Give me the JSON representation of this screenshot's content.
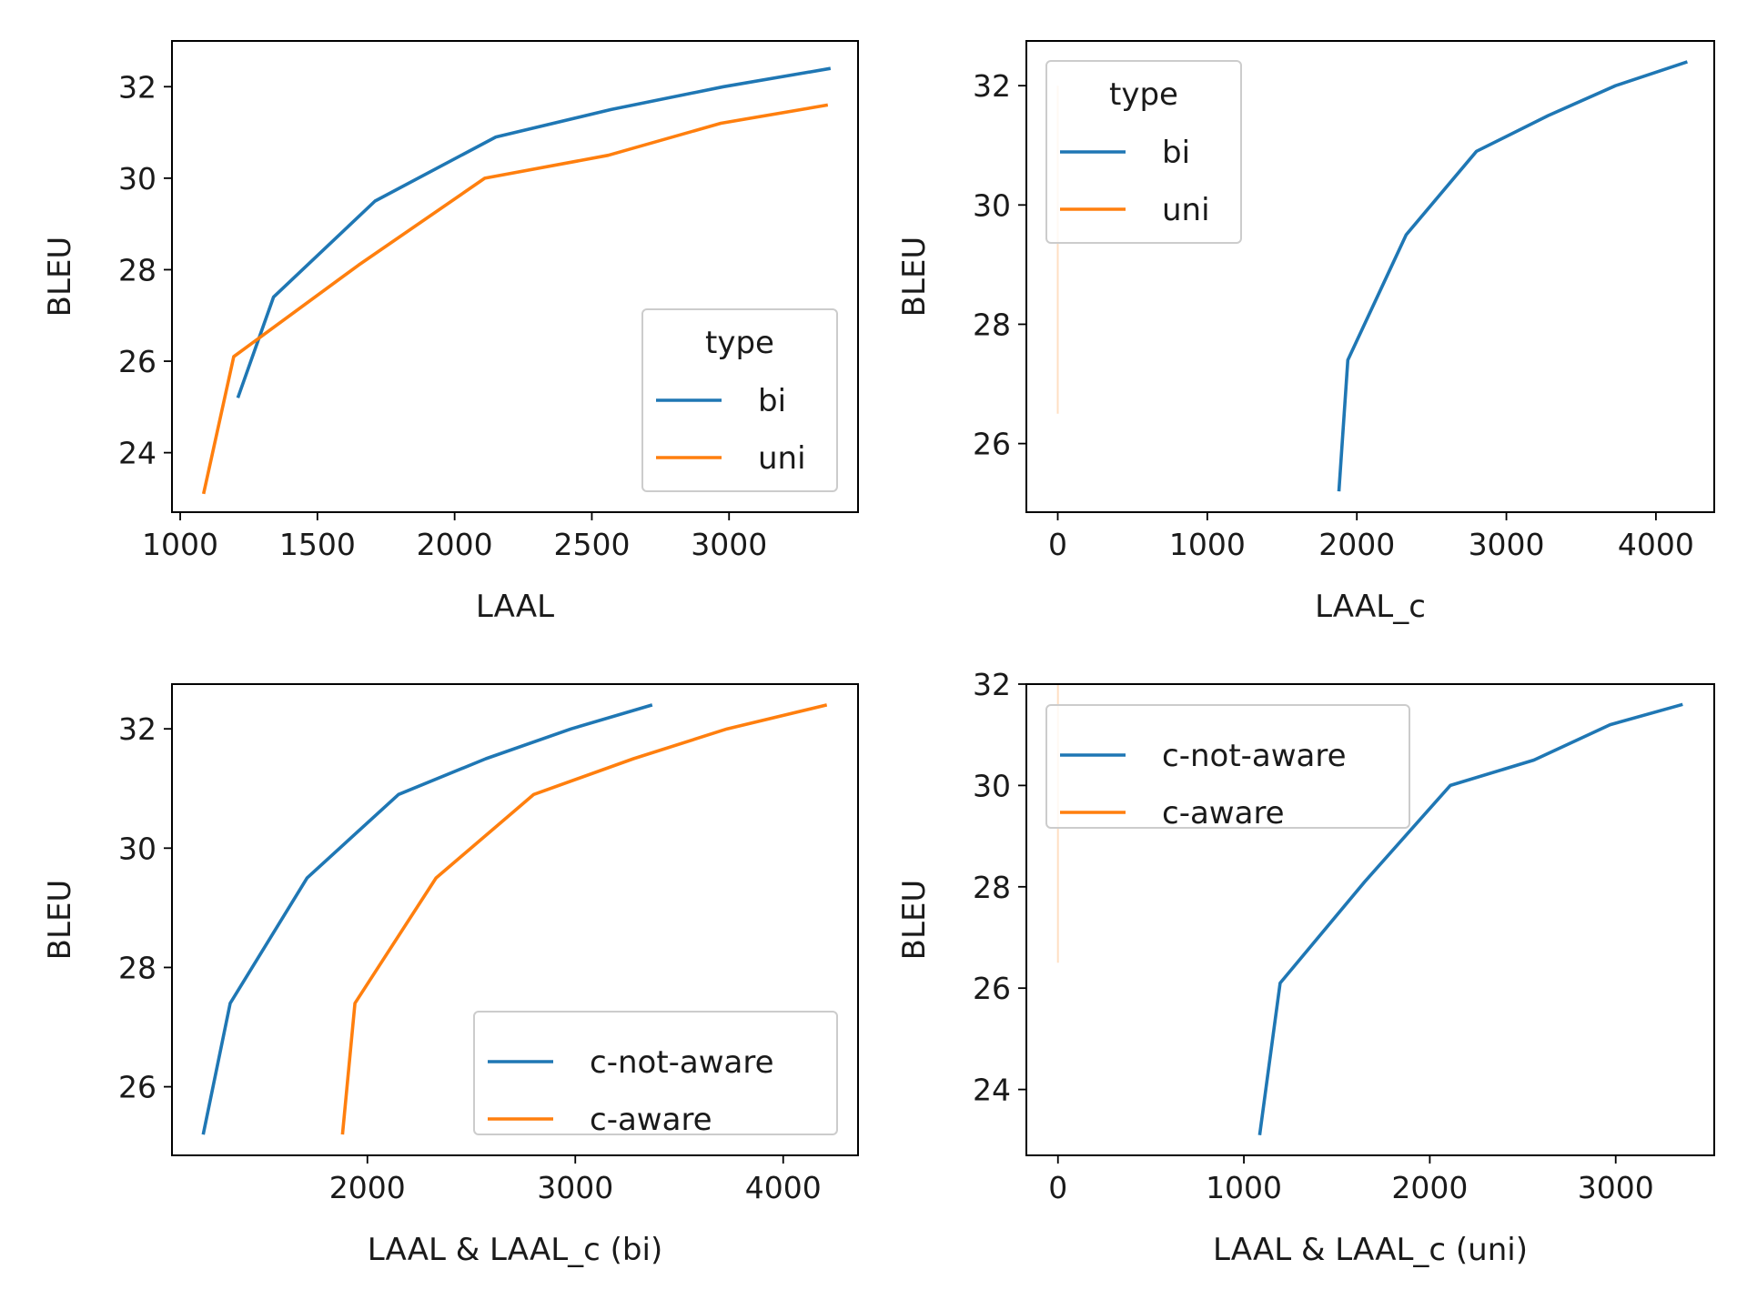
{
  "chart_data": [
    {
      "type": "line",
      "xlabel": "LAAL",
      "ylabel": "BLEU",
      "xlim": [
        970,
        3470
      ],
      "ylim": [
        22.7,
        33.0
      ],
      "xticks": [
        1000,
        1500,
        2000,
        2500,
        3000
      ],
      "yticks": [
        24,
        26,
        28,
        30,
        32
      ],
      "legend": {
        "title": "type",
        "position": "lower-right"
      },
      "series": [
        {
          "name": "bi",
          "color": "#1f77b4",
          "x": [
            1210,
            1340,
            1710,
            2150,
            2570,
            2980,
            3370
          ],
          "y": [
            25.2,
            27.4,
            29.5,
            30.9,
            31.5,
            32.0,
            32.4
          ]
        },
        {
          "name": "uni",
          "color": "#ff7f0e",
          "x": [
            1085,
            1195,
            1650,
            2110,
            2560,
            2970,
            3360
          ],
          "y": [
            23.1,
            26.1,
            28.1,
            30.0,
            30.5,
            31.2,
            31.6
          ]
        }
      ]
    },
    {
      "type": "line",
      "xlabel": "LAAL_c",
      "ylabel": "BLEU",
      "xlim": [
        -210,
        4390
      ],
      "ylim": [
        24.85,
        32.75
      ],
      "xticks": [
        0,
        1000,
        2000,
        3000,
        4000
      ],
      "yticks": [
        26,
        28,
        30,
        32
      ],
      "legend": {
        "title": "type",
        "position": "upper-left"
      },
      "series": [
        {
          "name": "bi",
          "color": "#1f77b4",
          "x": [
            1880,
            1940,
            2330,
            2800,
            3280,
            3730,
            4210
          ],
          "y": [
            25.2,
            27.4,
            29.5,
            30.9,
            31.5,
            32.0,
            32.4
          ]
        },
        {
          "name": "uni",
          "color": "#ff7f0e",
          "x": [
            0,
            0,
            0,
            0,
            0
          ],
          "y": [
            26.5,
            28.0,
            30.0,
            31.0,
            32.0
          ]
        }
      ]
    },
    {
      "type": "line",
      "xlabel": "LAAL & LAAL_c (bi)",
      "ylabel": "BLEU",
      "xlim": [
        1060,
        4360
      ],
      "ylim": [
        24.85,
        32.75
      ],
      "xticks": [
        2000,
        3000,
        4000
      ],
      "yticks": [
        26,
        28,
        30,
        32
      ],
      "legend": {
        "title": "",
        "position": "lower-right"
      },
      "series": [
        {
          "name": "c-not-aware",
          "color": "#1f77b4",
          "x": [
            1210,
            1340,
            1710,
            2150,
            2570,
            2980,
            3370
          ],
          "y": [
            25.2,
            27.4,
            29.5,
            30.9,
            31.5,
            32.0,
            32.4
          ]
        },
        {
          "name": "c-aware",
          "color": "#ff7f0e",
          "x": [
            1880,
            1940,
            2330,
            2800,
            3280,
            3730,
            4210
          ],
          "y": [
            25.2,
            27.4,
            29.5,
            30.9,
            31.5,
            32.0,
            32.4
          ]
        }
      ]
    },
    {
      "type": "line",
      "xlabel": "LAAL & LAAL_c (uni)",
      "ylabel": "BLEU",
      "xlim": [
        -170,
        3530
      ],
      "ylim": [
        22.7,
        32.0
      ],
      "xticks": [
        0,
        1000,
        2000,
        3000
      ],
      "yticks": [
        24,
        26,
        28,
        30,
        32
      ],
      "legend": {
        "title": "",
        "position": "upper-left"
      },
      "series": [
        {
          "name": "c-not-aware",
          "color": "#1f77b4",
          "x": [
            1085,
            1195,
            1650,
            2110,
            2560,
            2970,
            3360
          ],
          "y": [
            23.1,
            26.1,
            28.1,
            30.0,
            30.5,
            31.2,
            31.6
          ]
        },
        {
          "name": "c-aware",
          "color": "#ff7f0e",
          "x": [
            0,
            0,
            0,
            0,
            0
          ],
          "y": [
            26.5,
            28.0,
            30.0,
            31.0,
            32.0
          ]
        }
      ]
    }
  ]
}
